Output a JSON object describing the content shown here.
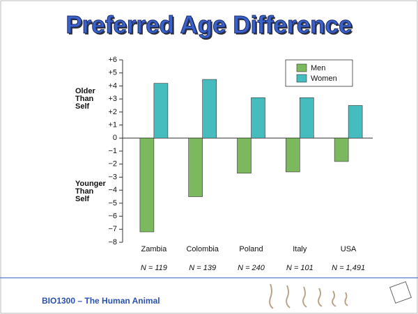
{
  "chart_data": {
    "type": "bar",
    "title": "Preferred Age Difference",
    "categories": [
      "Zambia",
      "Colombia",
      "Poland",
      "Italy",
      "USA"
    ],
    "series": [
      {
        "name": "Men",
        "color": "#7cb95e",
        "values": [
          -7.2,
          -4.5,
          -2.7,
          -2.6,
          -1.8
        ]
      },
      {
        "name": "Women",
        "color": "#45bcbd",
        "values": [
          4.2,
          4.5,
          3.1,
          3.1,
          2.5
        ]
      }
    ],
    "ylim": [
      -8,
      6
    ],
    "yticks": [
      {
        "value": 6,
        "label": "+6"
      },
      {
        "value": 5,
        "label": "+5"
      },
      {
        "value": 4,
        "label": "+4"
      },
      {
        "value": 3,
        "label": "+3"
      },
      {
        "value": 2,
        "label": "+2"
      },
      {
        "value": 1,
        "label": "+1"
      },
      0,
      {
        "value": -1,
        "label": "−1"
      },
      {
        "value": -2,
        "label": "−2"
      },
      {
        "value": -3,
        "label": "−3"
      },
      {
        "value": -4,
        "label": "−4"
      },
      {
        "value": -5,
        "label": "−5"
      },
      {
        "value": -6,
        "label": "−6"
      },
      {
        "value": -7,
        "label": "−7"
      },
      {
        "value": -8,
        "label": "−8"
      }
    ],
    "upper_axis_label": [
      "Older",
      "Than",
      "Self"
    ],
    "lower_axis_label": [
      "Younger",
      "Than",
      "Self"
    ],
    "sample_sizes": [
      "N = 119",
      "N = 139",
      "N = 240",
      "N = 101",
      "N = 1,491"
    ],
    "legend": "upper right"
  },
  "footer": "BIO1300 – The Human Animal"
}
